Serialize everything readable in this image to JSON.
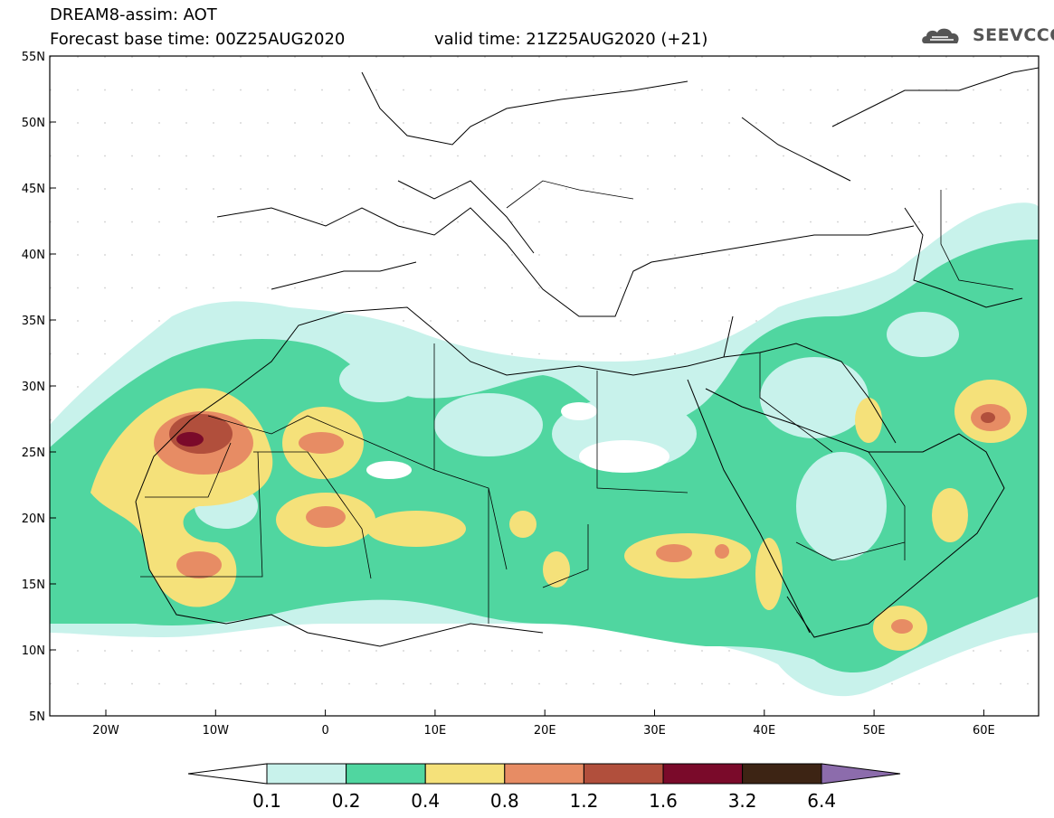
{
  "header": {
    "line1": "DREAM8-assim: AOT",
    "line2": "Forecast base time: 00Z25AUG2020",
    "line3": "valid time: 21Z25AUG2020 (+21)",
    "logo_text": "SEEVCCC"
  },
  "axes": {
    "lat_labels": [
      "55N",
      "50N",
      "45N",
      "40N",
      "35N",
      "30N",
      "25N",
      "20N",
      "15N",
      "10N",
      "5N"
    ],
    "lon_labels": [
      "20W",
      "10W",
      "0",
      "10E",
      "20E",
      "30E",
      "40E",
      "50E",
      "60E"
    ]
  },
  "colorbar": {
    "labels": [
      "0.1",
      "0.2",
      "0.4",
      "0.8",
      "1.2",
      "1.6",
      "3.2",
      "6.4"
    ],
    "colors": [
      "#c8f2eb",
      "#50d6a0",
      "#f5e17a",
      "#e78c64",
      "#b14f3c",
      "#7a0a2a",
      "#3d2414",
      "#8c6cac"
    ]
  },
  "colors": {
    "aot_0_1": "#c8f2eb",
    "aot_0_2": "#50d6a0",
    "aot_0_4": "#f5e17a",
    "aot_0_8": "#e78c64",
    "aot_1_2": "#b14f3c",
    "aot_1_6": "#7a0a2a"
  }
}
